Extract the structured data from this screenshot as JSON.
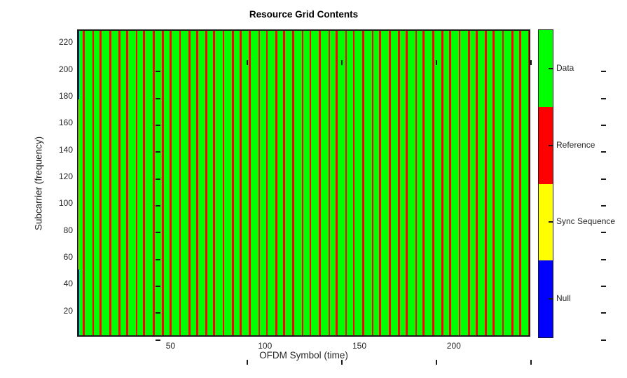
{
  "figure": {
    "background": "#ffffff",
    "title": "Resource Grid Contents"
  },
  "chart_data": {
    "type": "heatmap",
    "title": "Resource Grid Contents",
    "xlabel": "OFDM Symbol (time)",
    "ylabel": "Subcarrier (frequency)",
    "x_range": [
      0.5,
      240.5
    ],
    "y_range": [
      0.5,
      229.5
    ],
    "num_ofdm_symbols": 240,
    "num_subcarriers": 229,
    "x_ticks": [
      50,
      100,
      150,
      200
    ],
    "y_ticks": [
      20,
      40,
      60,
      80,
      100,
      120,
      140,
      160,
      180,
      200,
      220
    ],
    "grid": false,
    "default_fill": "Data",
    "sync_symbol": {
      "symbol_index": 1,
      "sync_subcarrier_range": [
        51,
        177
      ],
      "null_subcarrier_ranges": [
        [
          1,
          50
        ],
        [
          178,
          229
        ]
      ]
    },
    "reference_symbol_indices": [
      4,
      9,
      13,
      18,
      23,
      27,
      32,
      36,
      41,
      46,
      50,
      55,
      60,
      64,
      69,
      73,
      78,
      83,
      87,
      92,
      97,
      101,
      106,
      110,
      115,
      120,
      124,
      129,
      134,
      138,
      143,
      147,
      152,
      157,
      161,
      166,
      171,
      175,
      180,
      184,
      189,
      194,
      198,
      203,
      208,
      212,
      217,
      221,
      226,
      231,
      235,
      240
    ],
    "colors": {
      "Data": "#00ff00",
      "Reference": "#ff0000",
      "Sync Sequence": "#ffff00",
      "Null": "#0000ff"
    }
  },
  "colorbar": {
    "position": "right",
    "segments_top_to_bottom": [
      {
        "label": "Data",
        "color": "#00ff00"
      },
      {
        "label": "Reference",
        "color": "#ff0000"
      },
      {
        "label": "Sync Sequence",
        "color": "#ffff00"
      },
      {
        "label": "Null",
        "color": "#0000ff"
      }
    ]
  }
}
